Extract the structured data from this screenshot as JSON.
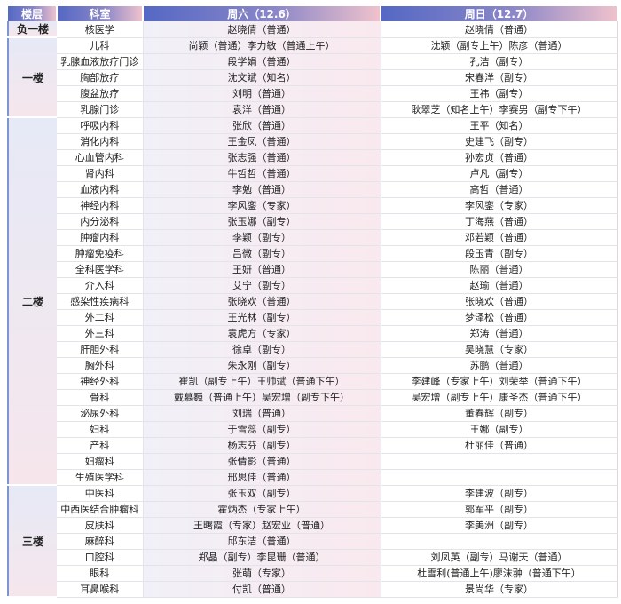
{
  "header": {
    "floor": "楼层",
    "dept": "科室",
    "sat": "周六（12.6）",
    "sun": "周日（12.7）"
  },
  "floors": [
    {
      "name": "负一楼",
      "rows": [
        {
          "dept": "核医学",
          "sat": "赵晓倩（普通）",
          "sun": "赵晓倩（普通）"
        }
      ]
    },
    {
      "name": "一楼",
      "rows": [
        {
          "dept": "儿科",
          "sat": "尚颖（普通）李力敏（普通上午）",
          "sun": "沈颖（副专上午）陈彦（普通）"
        },
        {
          "dept": "乳腺血液放疗门诊",
          "sat": "段学娟（普通）",
          "sun": "孔洁（副专）"
        },
        {
          "dept": "胸部放疗",
          "sat": "沈文斌（知名）",
          "sun": "宋春洋（副专）"
        },
        {
          "dept": "腹盆放疗",
          "sat": "刘明（普通）",
          "sun": "王祎（副专）"
        },
        {
          "dept": "乳腺门诊",
          "sat": "袁洋（普通）",
          "sun": "耿翠芝（知名上午）李赛男（副专下午）"
        }
      ]
    },
    {
      "name": "二楼",
      "rows": [
        {
          "dept": "呼吸内科",
          "sat": "张欣（普通）",
          "sun": "王平（知名）"
        },
        {
          "dept": "消化内科",
          "sat": "王金凤（普通）",
          "sun": "史建飞（副专）"
        },
        {
          "dept": "心血管内科",
          "sat": "张志强（普通）",
          "sun": "孙宏贞（普通）"
        },
        {
          "dept": "肾内科",
          "sat": "牛哲哲（普通）",
          "sun": "卢凡（副专）"
        },
        {
          "dept": "血液内科",
          "sat": "李勉（普通）",
          "sun": "高哲（普通）"
        },
        {
          "dept": "神经内科",
          "sat": "李风銮（专家）",
          "sun": "李风銮（专家）"
        },
        {
          "dept": "内分泌科",
          "sat": "张玉娜（副专）",
          "sun": "丁海燕（普通）"
        },
        {
          "dept": "肿瘤内科",
          "sat": "李颖（副专）",
          "sun": "邓若颖（普通）"
        },
        {
          "dept": "肿瘤免疫科",
          "sat": "吕微（副专）",
          "sun": "段玉青（副专）"
        },
        {
          "dept": "全科医学科",
          "sat": "王妍（普通）",
          "sun": "陈丽（普通）"
        },
        {
          "dept": "介入科",
          "sat": "艾宁（副专）",
          "sun": "赵瑜（普通）"
        },
        {
          "dept": "感染性疾病科",
          "sat": "张晓欢（普通）",
          "sun": "张晓欢（普通）"
        },
        {
          "dept": "外二科",
          "sat": "王光林（副专）",
          "sun": "梦泽松（普通）"
        },
        {
          "dept": "外三科",
          "sat": "袁虎方（专家）",
          "sun": "郑涛（普通）"
        },
        {
          "dept": "肝胆外科",
          "sat": "徐卓（副专）",
          "sun": "吴晓慧（专家）"
        },
        {
          "dept": "胸外科",
          "sat": "朱永刚（副专）",
          "sun": "苏鹏（普通）"
        },
        {
          "dept": "神经外科",
          "sat": "崔凯（副专上午）王帅斌（普通下午）",
          "sun": "李建峰（专家上午）刘荣举（普通下午）"
        },
        {
          "dept": "骨科",
          "sat": "戴慕巍（普通上午）吴宏增（副专下午）",
          "sun": "吴宏增（副专上午）康圣杰（普通下午）"
        },
        {
          "dept": "泌尿外科",
          "sat": "刘瑞（普通）",
          "sun": "董春辉（副专）"
        },
        {
          "dept": "妇科",
          "sat": "于雪蕊（副专）",
          "sun": "王娜（副专）"
        },
        {
          "dept": "产科",
          "sat": "杨志芬（副专）",
          "sun": "杜丽佳（普通）"
        },
        {
          "dept": "妇瘤科",
          "sat": "张倩影（普通）",
          "sun": ""
        },
        {
          "dept": "生殖医学科",
          "sat": "邢思佳（普通）",
          "sun": ""
        }
      ]
    },
    {
      "name": "三楼",
      "rows": [
        {
          "dept": "中医科",
          "sat": "张玉双（副专）",
          "sun": "李建波（副专）"
        },
        {
          "dept": "中西医结合肿瘤科",
          "sat": "霍炳杰（专家上午）",
          "sun": "郭军平（副专）"
        },
        {
          "dept": "皮肤科",
          "sat": "王曙霞（专家）赵宏业（普通）",
          "sun": "李美洲（副专）"
        },
        {
          "dept": "麻醉科",
          "sat": "邱东洁（普通）",
          "sun": ""
        },
        {
          "dept": "口腔科",
          "sat": "郑晶（副专）李昆珊（普通）",
          "sun": "刘凤英（副专）马谢天（普通）"
        },
        {
          "dept": "眼科",
          "sat": "张萌（专家）",
          "sun": "杜雪利(普通上午)廖沫翀（普通下午）"
        },
        {
          "dept": "耳鼻喉科",
          "sat": "付凯（普通）",
          "sun": "景尚华（专家）"
        }
      ]
    }
  ]
}
